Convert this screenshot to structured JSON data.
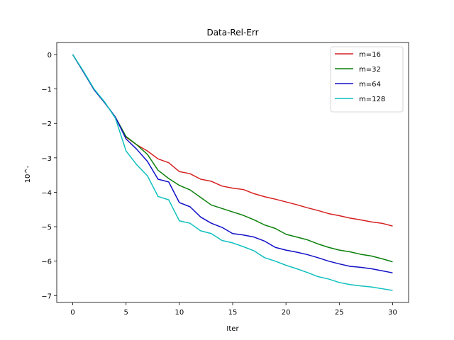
{
  "chart_data": {
    "type": "line",
    "title": "Data-Rel-Err",
    "xlabel": "Iter",
    "ylabel": "10^-",
    "xlim": [
      -1.5,
      31.5
    ],
    "ylim": [
      -7.2,
      0.35
    ],
    "xticks": [
      0,
      5,
      10,
      15,
      20,
      25,
      30
    ],
    "yticks": [
      0,
      -1,
      -2,
      -3,
      -4,
      -5,
      -6,
      -7
    ],
    "grid": false,
    "legend_position": "top-right",
    "x": [
      0,
      1,
      2,
      3,
      4,
      5,
      6,
      7,
      8,
      9,
      10,
      11,
      12,
      13,
      14,
      15,
      16,
      17,
      18,
      19,
      20,
      21,
      22,
      23,
      24,
      25,
      26,
      27,
      28,
      29,
      30
    ],
    "series": [
      {
        "name": "m=16",
        "color": "#d62020",
        "values": [
          0,
          -0.5,
          -1.02,
          -1.4,
          -1.82,
          -2.4,
          -2.62,
          -2.8,
          -3.03,
          -3.14,
          -3.4,
          -3.46,
          -3.62,
          -3.68,
          -3.82,
          -3.88,
          -3.92,
          -4.04,
          -4.13,
          -4.2,
          -4.28,
          -4.36,
          -4.45,
          -4.53,
          -4.62,
          -4.68,
          -4.75,
          -4.8,
          -4.86,
          -4.9,
          -4.98
        ]
      },
      {
        "name": "m=32",
        "color": "#0a800a",
        "values": [
          0,
          -0.5,
          -1.02,
          -1.4,
          -1.82,
          -2.38,
          -2.62,
          -2.9,
          -3.36,
          -3.6,
          -3.8,
          -3.93,
          -4.15,
          -4.37,
          -4.47,
          -4.57,
          -4.67,
          -4.8,
          -4.95,
          -5.05,
          -5.22,
          -5.3,
          -5.38,
          -5.5,
          -5.6,
          -5.68,
          -5.73,
          -5.8,
          -5.85,
          -5.93,
          -6.02
        ]
      },
      {
        "name": "m=64",
        "color": "#1010c8",
        "values": [
          0,
          -0.5,
          -1.02,
          -1.4,
          -1.82,
          -2.45,
          -2.75,
          -3.1,
          -3.62,
          -3.7,
          -4.3,
          -4.42,
          -4.72,
          -4.9,
          -5.02,
          -5.2,
          -5.24,
          -5.3,
          -5.42,
          -5.6,
          -5.68,
          -5.74,
          -5.81,
          -5.9,
          -6.0,
          -6.08,
          -6.15,
          -6.18,
          -6.22,
          -6.28,
          -6.34
        ]
      },
      {
        "name": "m=128",
        "color": "#10bfbf",
        "values": [
          0,
          -0.48,
          -1.0,
          -1.38,
          -1.85,
          -2.8,
          -3.2,
          -3.52,
          -4.12,
          -4.22,
          -4.83,
          -4.9,
          -5.12,
          -5.2,
          -5.4,
          -5.47,
          -5.58,
          -5.7,
          -5.9,
          -6.0,
          -6.12,
          -6.22,
          -6.33,
          -6.45,
          -6.52,
          -6.62,
          -6.68,
          -6.72,
          -6.75,
          -6.8,
          -6.85
        ]
      }
    ]
  }
}
